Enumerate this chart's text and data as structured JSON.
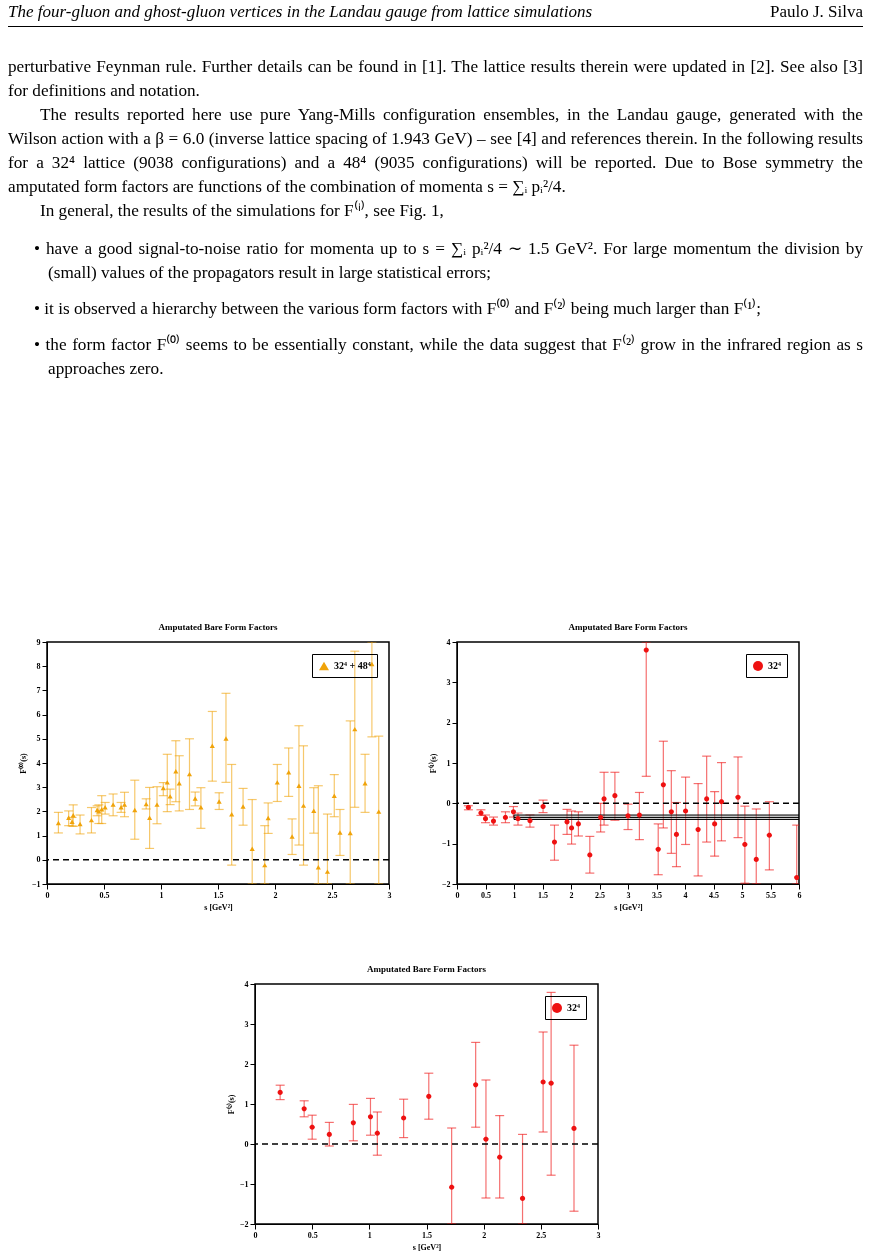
{
  "chart_data": [
    {
      "type": "scatter",
      "title": "Amputated Bare Form Factors",
      "xlabel": "s [GeV²]",
      "ylabel": "F⁽⁰⁾(s)",
      "annotations": [
        "The four-gluon and ghost-gluon vertices in the Landau gauge from lattice simulations",
        "Paulo J. Silva",
        "perturbative Feynman rule. Further details can be found in [1]. The lattice results therein were updated in [2]. See also [3] for definitions and notation.",
        "The results reported here use pure Yang-Mills configuration ensembles, in the Landau gauge, generated with the Wilson action with a β = 6.0 (inverse lattice spacing of 1.943 GeV) – see [4] and references therein. In the following results for a 32⁴ lattice (9038 configurations) and a 48⁴ (9035 configurations) will be reported. Due to Bose symmetry the amputated form factors are functions of the combination of momenta s = ∑ᵢ pᵢ²/4.",
        "In general, the results of the simulations for F⁽ⁱ⁾, see Fig. 1,",
        "• have a good signal-to-noise ratio for momenta up to s = ∑ᵢ pᵢ²/4 ∼ 1.5 GeV². For large momentum the division by (small) values of the propagators result in large statistical errors;",
        "• it is observed a hierarchy between the various form factors with F⁽⁰⁾ and F⁽²⁾ being much larger than F⁽¹⁾;",
        "• the form factor F⁽⁰⁾ seems to be essentially constant, while the data suggest that F⁽²⁾ grow in the infrared region as s approaches zero."
      ],
      "xlim": [
        0,
        3
      ],
      "xticks": [
        0,
        0.5,
        1,
        1.5,
        2,
        2.5,
        3
      ],
      "ylim": [
        -1,
        9
      ],
      "yticks": [
        -1,
        0,
        1,
        2,
        3,
        4,
        5,
        6,
        7,
        8,
        9
      ],
      "grid": false,
      "legend": "top right",
      "marker": "triangle",
      "ref_lines": [
        {
          "axis": "y",
          "value": 0,
          "line_style": "dashed"
        }
      ],
      "series": [
        {
          "name": "32⁴ + 48⁴",
          "color": "#f0a30a",
          "x": [
            0.1,
            0.19,
            0.22,
            0.23,
            0.29,
            0.39,
            0.44,
            0.455,
            0.48,
            0.51,
            0.58,
            0.65,
            0.68,
            0.77,
            0.87,
            0.9,
            0.965,
            1.02,
            1.055,
            1.08,
            1.13,
            1.16,
            1.25,
            1.3,
            1.35,
            1.45,
            1.51,
            1.57,
            1.62,
            1.72,
            1.8,
            1.91,
            1.94,
            2.02,
            2.12,
            2.15,
            2.21,
            2.25,
            2.34,
            2.38,
            2.46,
            2.52,
            2.57,
            2.66,
            2.7,
            2.79,
            2.85,
            2.91
          ],
          "values": [
            1.52,
            1.74,
            1.57,
            1.84,
            1.48,
            1.64,
            2.06,
            2.0,
            2.09,
            2.17,
            2.28,
            2.17,
            2.28,
            2.06,
            2.3,
            1.74,
            2.28,
            2.97,
            3.2,
            2.62,
            3.66,
            3.16,
            3.54,
            2.53,
            2.17,
            4.71,
            2.41,
            5.01,
            1.88,
            2.2,
            0.46,
            -0.22,
            1.73,
            3.2,
            3.62,
            0.96,
            3.06,
            2.24,
            2.03,
            -0.31,
            -0.49,
            2.65,
            1.13,
            1.11,
            5.4,
            3.16,
            8.09,
            1.99
          ],
          "errors": [
            [
              1.11,
              1.96
            ],
            [
              1.41,
              2.02
            ],
            [
              1.4,
              1.75
            ],
            [
              1.38,
              2.27
            ],
            [
              1.07,
              1.85
            ],
            [
              1.11,
              2.16
            ],
            [
              1.82,
              2.23
            ],
            [
              1.5,
              2.27
            ],
            [
              1.5,
              2.65
            ],
            [
              1.89,
              2.37
            ],
            [
              1.82,
              2.72
            ],
            [
              1.96,
              2.37
            ],
            [
              1.78,
              2.79
            ],
            [
              0.85,
              3.29
            ],
            [
              2.1,
              2.52
            ],
            [
              0.47,
              2.99
            ],
            [
              1.49,
              3.02
            ],
            [
              2.65,
              3.19
            ],
            [
              1.99,
              4.36
            ],
            [
              2.28,
              2.92
            ],
            [
              2.4,
              4.92
            ],
            [
              2.02,
              4.3
            ],
            [
              2.08,
              5.0
            ],
            [
              2.23,
              2.8
            ],
            [
              1.3,
              2.98
            ],
            [
              3.25,
              6.13
            ],
            [
              2.08,
              2.77
            ],
            [
              3.2,
              6.88
            ],
            [
              -0.22,
              3.94
            ],
            [
              1.43,
              2.95
            ],
            [
              -1,
              2.49
            ],
            [
              -1,
              1.41
            ],
            [
              1.09,
              2.35
            ],
            [
              2.41,
              3.94
            ],
            [
              2.62,
              4.62
            ],
            [
              0.22,
              1.69
            ],
            [
              0.61,
              5.54
            ],
            [
              -0.22,
              4.71
            ],
            [
              1.1,
              2.98
            ],
            [
              -1,
              3.06
            ],
            [
              -1,
              1.89
            ],
            [
              1.78,
              3.52
            ],
            [
              0.18,
              2.08
            ],
            [
              -1,
              5.74
            ],
            [
              2.17,
              8.62
            ],
            [
              1.96,
              4.36
            ],
            [
              5.08,
              9
            ],
            [
              -1,
              5.11
            ]
          ]
        }
      ]
    },
    {
      "type": "scatter",
      "title": "Amputated Bare Form Factors",
      "xlabel": "s [GeV²]",
      "ylabel": "F⁽¹⁾(s)",
      "xlim": [
        0,
        6
      ],
      "xticks": [
        0,
        0.5,
        1,
        1.5,
        2,
        2.5,
        3,
        3.5,
        4,
        4.5,
        5,
        5.5,
        6
      ],
      "ylim": [
        -2,
        4
      ],
      "yticks": [
        -2,
        -1,
        0,
        1,
        2,
        3,
        4
      ],
      "grid": false,
      "legend": "top right",
      "marker": "circle",
      "ref_lines": [
        {
          "axis": "y",
          "value": 0,
          "line_style": "dashed"
        }
      ],
      "series": [
        {
          "name": "32⁴",
          "color": "#ee1111",
          "x": [
            0.2,
            0.42,
            0.5,
            0.64,
            0.85,
            0.99,
            1.07,
            1.28,
            1.51,
            1.71,
            1.93,
            2.01,
            2.13,
            2.33,
            2.52,
            2.58,
            2.77,
            3.0,
            3.2,
            3.32,
            3.53,
            3.62,
            3.76,
            3.85,
            4.01,
            4.23,
            4.38,
            4.52,
            4.64,
            4.93,
            5.05,
            5.25,
            5.48,
            5.96
          ],
          "values": [
            -0.1,
            -0.24,
            -0.38,
            -0.44,
            -0.35,
            -0.21,
            -0.38,
            -0.43,
            -0.08,
            -0.96,
            -0.46,
            -0.61,
            -0.51,
            -1.28,
            -0.35,
            0.11,
            0.19,
            -0.31,
            -0.29,
            3.8,
            -1.14,
            0.46,
            -0.21,
            -0.77,
            -0.19,
            -0.65,
            0.11,
            -0.51,
            0.04,
            0.15,
            -1.02,
            -1.39,
            -0.79,
            -1.84
          ],
          "errors": [
            [
              -0.16,
              -0.06
            ],
            [
              -0.3,
              -0.16
            ],
            [
              -0.48,
              -0.29
            ],
            [
              -0.54,
              -0.34
            ],
            [
              -0.48,
              -0.21
            ],
            [
              -0.34,
              -0.08
            ],
            [
              -0.54,
              -0.24
            ],
            [
              -0.59,
              -0.29
            ],
            [
              -0.23,
              0.08
            ],
            [
              -1.41,
              -0.54
            ],
            [
              -0.77,
              -0.15
            ],
            [
              -1.01,
              -0.19
            ],
            [
              -0.81,
              -0.21
            ],
            [
              -1.73,
              -0.82
            ],
            [
              -0.71,
              0
            ],
            [
              -0.54,
              0.77
            ],
            [
              -0.42,
              0.77
            ],
            [
              -0.65,
              -0.02
            ],
            [
              -0.9,
              0.27
            ],
            [
              0.67,
              4
            ],
            [
              -1.77,
              -0.51
            ],
            [
              -0.61,
              1.54
            ],
            [
              -1.24,
              0.81
            ],
            [
              -1.57,
              0.02
            ],
            [
              -1.02,
              0.65
            ],
            [
              -1.8,
              0.49
            ],
            [
              -0.96,
              1.17
            ],
            [
              -1.31,
              0.29
            ],
            [
              -0.93,
              1.01
            ],
            [
              -0.85,
              1.15
            ],
            [
              -1.98,
              -0.07
            ],
            [
              -2,
              -0.14
            ],
            [
              -1.65,
              0.04
            ],
            [
              -2,
              -0.54
            ]
          ]
        },
        {
          "type": "line",
          "marker": "none",
          "color": "#000000",
          "x": [
            1,
            6
          ],
          "values": [
            -0.35,
            -0.35
          ],
          "lower": [
            -0.4,
            -0.4
          ],
          "upper": [
            -0.29,
            -0.29
          ]
        }
      ]
    },
    {
      "type": "scatter",
      "title": "Amputated Bare Form Factors",
      "xlabel": "s [GeV²]",
      "ylabel": "F⁽²⁾(s)",
      "xlim": [
        0,
        3
      ],
      "xticks": [
        0,
        0.5,
        1,
        1.5,
        2,
        2.5,
        3
      ],
      "ylim": [
        -2,
        4
      ],
      "yticks": [
        -2,
        -1,
        0,
        1,
        2,
        3,
        4
      ],
      "grid": false,
      "legend": "top right",
      "marker": "circle",
      "ref_lines": [
        {
          "axis": "y",
          "value": 0,
          "line_style": "dashed"
        }
      ],
      "series": [
        {
          "name": "32⁴",
          "color": "#ee1111",
          "x": [
            0.22,
            0.43,
            0.5,
            0.65,
            0.86,
            1.01,
            1.07,
            1.3,
            1.52,
            1.72,
            1.93,
            2.02,
            2.14,
            2.34,
            2.52,
            2.59,
            2.79
          ],
          "values": [
            1.29,
            0.88,
            0.42,
            0.24,
            0.53,
            0.68,
            0.27,
            0.65,
            1.19,
            -1.08,
            1.48,
            0.12,
            -0.33,
            -1.36,
            1.55,
            1.52,
            0.39
          ],
          "errors": [
            [
              1.11,
              1.47
            ],
            [
              0.68,
              1.08
            ],
            [
              0.12,
              0.72
            ],
            [
              -0.05,
              0.54
            ],
            [
              0.08,
              0.99
            ],
            [
              0.22,
              1.14
            ],
            [
              -0.28,
              0.8
            ],
            [
              0.16,
              1.12
            ],
            [
              0.62,
              1.77
            ],
            [
              -2,
              0.4
            ],
            [
              0.42,
              2.54
            ],
            [
              -1.35,
              1.6
            ],
            [
              -1.35,
              0.71
            ],
            [
              -2,
              0.24
            ],
            [
              0.3,
              2.8
            ],
            [
              -0.78,
              3.79
            ],
            [
              -1.68,
              2.47
            ]
          ]
        }
      ]
    }
  ]
}
